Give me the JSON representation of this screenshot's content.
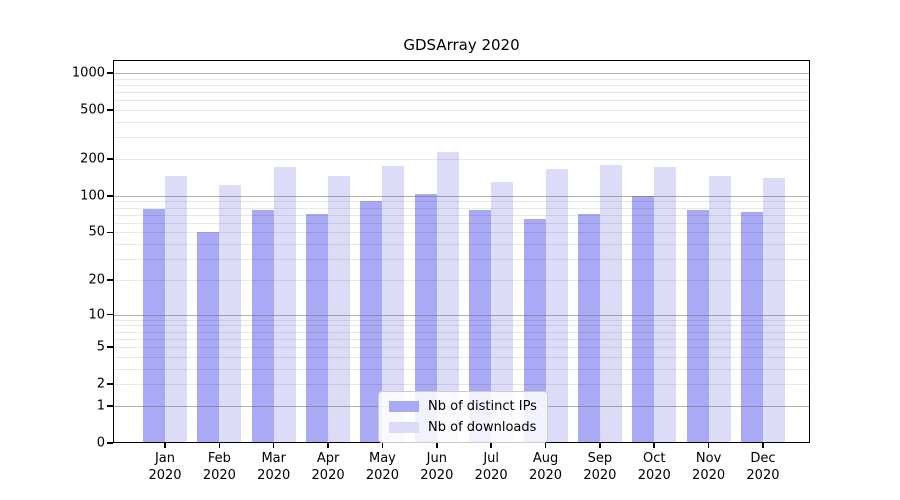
{
  "chart_data": {
    "type": "bar",
    "title": "GDSArray 2020",
    "categories": [
      "Jan 2020",
      "Feb 2020",
      "Mar 2020",
      "Apr 2020",
      "May 2020",
      "Jun 2020",
      "Jul 2020",
      "Aug 2020",
      "Sep 2020",
      "Oct 2020",
      "Nov 2020",
      "Dec 2020"
    ],
    "series": [
      {
        "name": "Nb of distinct IPs",
        "color": "#a9a9f5",
        "values": [
          78,
          50,
          77,
          71,
          90,
          104,
          76,
          64,
          71,
          100,
          77,
          74
        ]
      },
      {
        "name": "Nb of downloads",
        "color": "#dcdcf8",
        "values": [
          145,
          122,
          172,
          145,
          175,
          228,
          130,
          165,
          178,
          172,
          145,
          140
        ]
      }
    ],
    "xlabel": "",
    "ylabel": "",
    "yscale": "log(value+1)",
    "yticks": [
      0,
      1,
      2,
      5,
      10,
      20,
      50,
      100,
      200,
      500,
      1000
    ],
    "ylim": [
      0,
      1275
    ],
    "grid": true,
    "legend_position": "lower center"
  },
  "style": {
    "bar_ips": "#a9a9f5",
    "bar_downloads": "#dcdcf8",
    "grid_major": "rgba(110,110,110,0.55)",
    "grid_minor": "rgba(0,0,0,0.09)",
    "axis": "#000000",
    "legend_bg": "rgba(255,255,255,0.85)",
    "legend_border": "#cccccc"
  }
}
